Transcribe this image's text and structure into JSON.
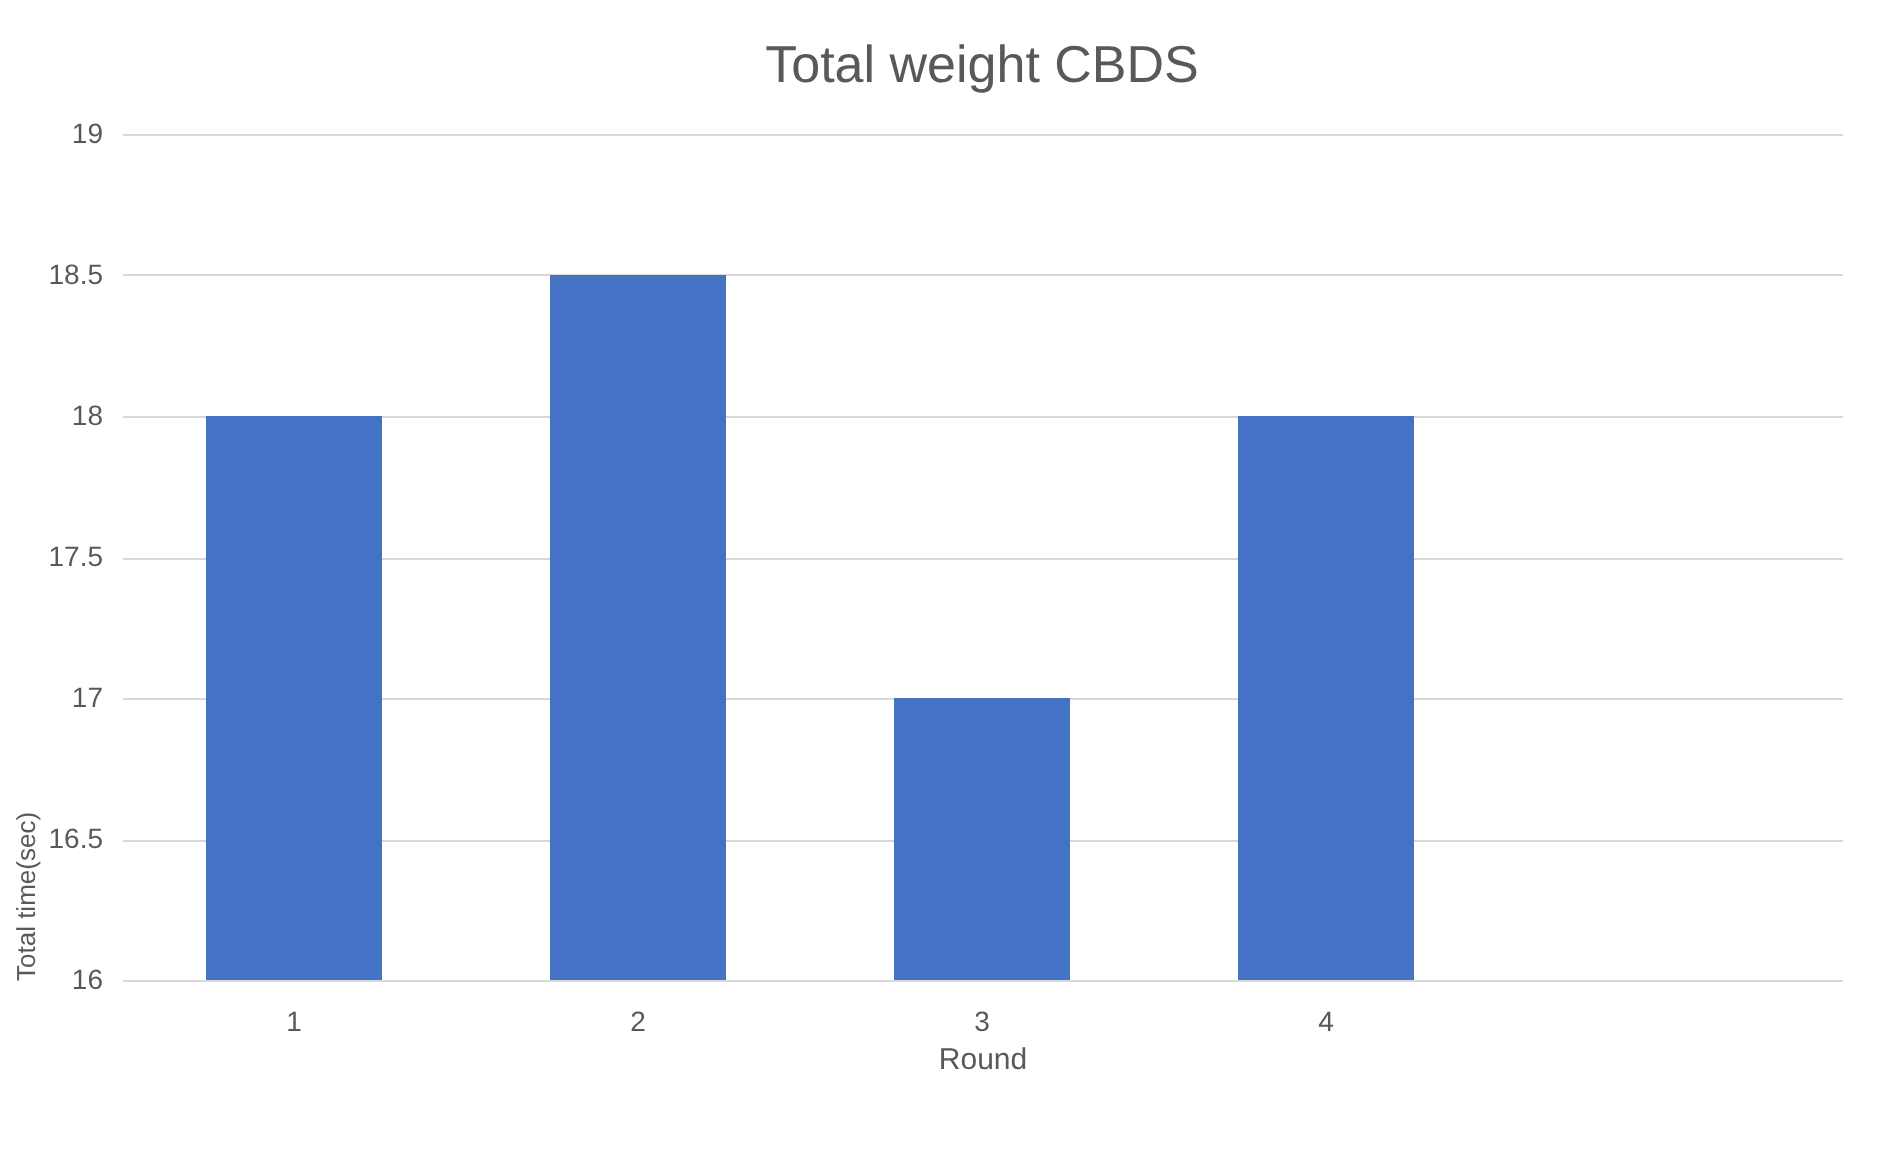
{
  "chart_data": {
    "type": "bar",
    "title": "Total weight CBDS",
    "xlabel": "Round",
    "ylabel": "Total time(sec)",
    "categories": [
      "1",
      "2",
      "3",
      "4",
      null
    ],
    "values": [
      18,
      18.5,
      17,
      18,
      null
    ],
    "color": "#4472c4",
    "ylim": [
      16,
      19
    ],
    "yticks": [
      16,
      16.5,
      17,
      17.5,
      18,
      18.5,
      19
    ],
    "grid": "y"
  }
}
